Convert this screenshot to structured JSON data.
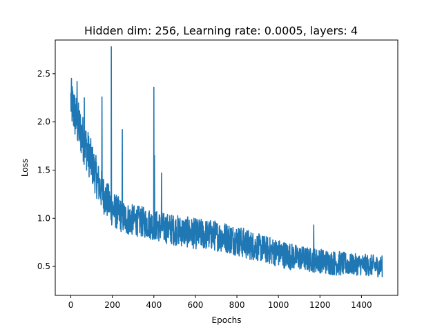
{
  "chart_data": {
    "type": "line",
    "title": "Hidden dim: 256, Learning rate: 0.0005, layers: 4",
    "xlabel": "Epochs",
    "ylabel": "Loss",
    "xlim": [
      -75,
      1575
    ],
    "ylim": [
      0.2,
      2.85
    ],
    "xticks": [
      0,
      200,
      400,
      600,
      800,
      1000,
      1200,
      1400
    ],
    "xtick_labels": [
      "0",
      "200",
      "400",
      "600",
      "800",
      "1000",
      "1200",
      "1400"
    ],
    "yticks": [
      0.5,
      1.0,
      1.5,
      2.0,
      2.5
    ],
    "ytick_labels": [
      "0.5",
      "1.0",
      "1.5",
      "2.0",
      "2.5"
    ],
    "grid": false,
    "series": [
      {
        "name": "loss",
        "color": "#1f77b4",
        "x": [
          0,
          30,
          60,
          100,
          130,
          150,
          170,
          190,
          200,
          230,
          260,
          300,
          350,
          400,
          450,
          500,
          550,
          600,
          650,
          700,
          750,
          800,
          850,
          900,
          950,
          1000,
          1050,
          1100,
          1150,
          1200,
          1250,
          1300,
          1350,
          1400,
          1450,
          1500
        ],
        "values": [
          2.22,
          2.0,
          1.82,
          1.58,
          1.38,
          1.28,
          1.2,
          1.14,
          1.1,
          1.05,
          1.0,
          0.98,
          0.96,
          0.93,
          0.9,
          0.88,
          0.86,
          0.84,
          0.83,
          0.82,
          0.8,
          0.77,
          0.73,
          0.7,
          0.67,
          0.64,
          0.61,
          0.59,
          0.57,
          0.56,
          0.54,
          0.53,
          0.52,
          0.52,
          0.51,
          0.5
        ],
        "noise": [
          0.16,
          0.16,
          0.15,
          0.14,
          0.13,
          0.13,
          0.12,
          0.12,
          0.12,
          0.11,
          0.11,
          0.1,
          0.1,
          0.1,
          0.1,
          0.1,
          0.1,
          0.1,
          0.1,
          0.1,
          0.1,
          0.1,
          0.1,
          0.09,
          0.09,
          0.09,
          0.09,
          0.08,
          0.08,
          0.08,
          0.08,
          0.08,
          0.07,
          0.07,
          0.07,
          0.07
        ],
        "spikes": [
          {
            "x": 30,
            "y": 2.42
          },
          {
            "x": 65,
            "y": 2.25
          },
          {
            "x": 150,
            "y": 2.26
          },
          {
            "x": 195,
            "y": 2.78
          },
          {
            "x": 248,
            "y": 1.92
          },
          {
            "x": 400,
            "y": 2.36
          },
          {
            "x": 403,
            "y": 1.65
          },
          {
            "x": 437,
            "y": 1.47
          },
          {
            "x": 1170,
            "y": 0.93
          }
        ]
      }
    ]
  }
}
